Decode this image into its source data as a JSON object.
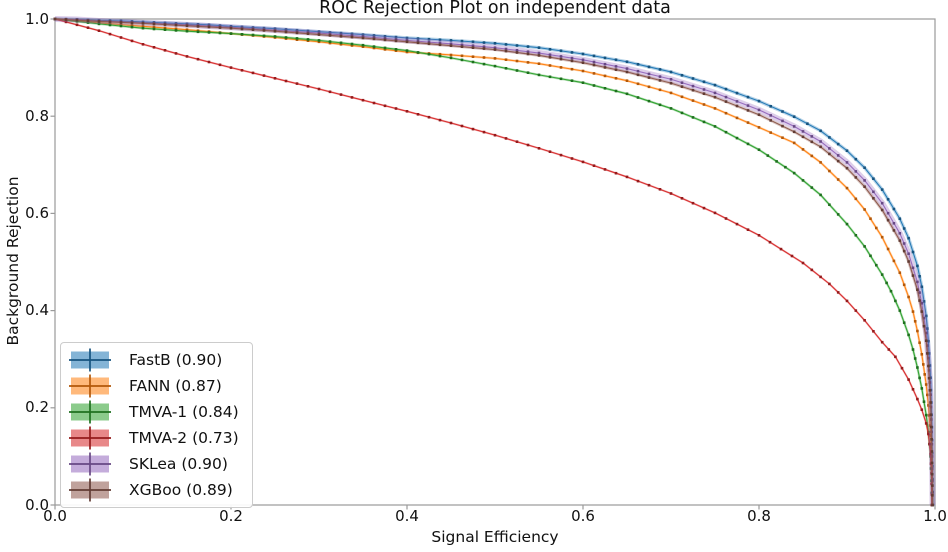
{
  "title": "ROC Rejection Plot on independent data",
  "axes": {
    "xlabel": "Signal Efficiency",
    "ylabel": "Background Rejection",
    "x_ticks": [
      "0.0",
      "0.2",
      "0.4",
      "0.6",
      "0.8",
      "1.0"
    ],
    "y_ticks": [
      "0.0",
      "0.2",
      "0.4",
      "0.6",
      "0.8",
      "1.0"
    ],
    "xlim": [
      0.0,
      1.0
    ],
    "ylim": [
      0.0,
      1.0
    ],
    "spine_color": "#9a9a9a",
    "grid": false
  },
  "legend": {
    "position": "lower left",
    "marker_style": "errorbar-patch"
  },
  "chart_data": {
    "type": "line",
    "title": "ROC Rejection Plot on independent data",
    "xlabel": "Signal Efficiency",
    "ylabel": "Background Rejection",
    "xlim": [
      0.0,
      1.0
    ],
    "ylim": [
      0.0,
      1.0
    ],
    "grid": false,
    "legend_position": "lower left",
    "series": [
      {
        "name": "FastB (0.90)",
        "auc": 0.9,
        "color": "#1f77b4",
        "marker_color": "#16537e",
        "band_width": 3.4,
        "points": [
          [
            0,
            1.0
          ],
          [
            0.025,
            0.999
          ],
          [
            0.05,
            0.997
          ],
          [
            0.075,
            0.996
          ],
          [
            0.1,
            0.994
          ],
          [
            0.125,
            0.992
          ],
          [
            0.15,
            0.99
          ],
          [
            0.175,
            0.988
          ],
          [
            0.2,
            0.985
          ],
          [
            0.25,
            0.98
          ],
          [
            0.3,
            0.974
          ],
          [
            0.35,
            0.968
          ],
          [
            0.4,
            0.961
          ],
          [
            0.45,
            0.956
          ],
          [
            0.5,
            0.95
          ],
          [
            0.55,
            0.941
          ],
          [
            0.6,
            0.928
          ],
          [
            0.65,
            0.912
          ],
          [
            0.7,
            0.891
          ],
          [
            0.75,
            0.864
          ],
          [
            0.8,
            0.831
          ],
          [
            0.84,
            0.799
          ],
          [
            0.87,
            0.77
          ],
          [
            0.9,
            0.729
          ],
          [
            0.92,
            0.694
          ],
          [
            0.94,
            0.649
          ],
          [
            0.96,
            0.589
          ],
          [
            0.97,
            0.549
          ],
          [
            0.98,
            0.492
          ],
          [
            0.985,
            0.449
          ],
          [
            0.99,
            0.389
          ],
          [
            0.9925,
            0.337
          ],
          [
            0.995,
            0.262
          ],
          [
            0.9965,
            0.16
          ],
          [
            0.997,
            0.08
          ],
          [
            0.9975,
            0.0
          ]
        ]
      },
      {
        "name": "FANN (0.87)",
        "auc": 0.87,
        "color": "#ff7f0e",
        "marker_color": "#b35809",
        "band_width": 2.4,
        "points": [
          [
            0,
            1.0
          ],
          [
            0.025,
            0.996
          ],
          [
            0.05,
            0.992
          ],
          [
            0.1,
            0.985
          ],
          [
            0.15,
            0.978
          ],
          [
            0.2,
            0.97
          ],
          [
            0.25,
            0.962
          ],
          [
            0.3,
            0.953
          ],
          [
            0.35,
            0.943
          ],
          [
            0.4,
            0.932
          ],
          [
            0.45,
            0.926
          ],
          [
            0.5,
            0.919
          ],
          [
            0.55,
            0.908
          ],
          [
            0.6,
            0.893
          ],
          [
            0.65,
            0.873
          ],
          [
            0.7,
            0.848
          ],
          [
            0.75,
            0.816
          ],
          [
            0.8,
            0.777
          ],
          [
            0.84,
            0.745
          ],
          [
            0.87,
            0.705
          ],
          [
            0.9,
            0.652
          ],
          [
            0.92,
            0.608
          ],
          [
            0.94,
            0.551
          ],
          [
            0.96,
            0.478
          ],
          [
            0.97,
            0.428
          ],
          [
            0.975,
            0.398
          ],
          [
            0.98,
            0.358
          ],
          [
            0.985,
            0.31
          ],
          [
            0.99,
            0.248
          ],
          [
            0.9925,
            0.205
          ],
          [
            0.995,
            0.143
          ],
          [
            0.9965,
            0.072
          ],
          [
            0.997,
            0.0
          ]
        ]
      },
      {
        "name": "TMVA-1 (0.84)",
        "auc": 0.84,
        "color": "#2ca02c",
        "marker_color": "#1e701e",
        "band_width": 2.4,
        "points": [
          [
            0,
            1.0
          ],
          [
            0.025,
            0.995
          ],
          [
            0.05,
            0.99
          ],
          [
            0.1,
            0.981
          ],
          [
            0.15,
            0.975
          ],
          [
            0.2,
            0.97
          ],
          [
            0.25,
            0.964
          ],
          [
            0.3,
            0.956
          ],
          [
            0.35,
            0.946
          ],
          [
            0.4,
            0.935
          ],
          [
            0.45,
            0.92
          ],
          [
            0.5,
            0.903
          ],
          [
            0.55,
            0.885
          ],
          [
            0.6,
            0.869
          ],
          [
            0.65,
            0.846
          ],
          [
            0.7,
            0.816
          ],
          [
            0.75,
            0.779
          ],
          [
            0.8,
            0.731
          ],
          [
            0.84,
            0.683
          ],
          [
            0.87,
            0.638
          ],
          [
            0.9,
            0.578
          ],
          [
            0.92,
            0.532
          ],
          [
            0.94,
            0.474
          ],
          [
            0.95,
            0.44
          ],
          [
            0.96,
            0.4
          ],
          [
            0.97,
            0.35
          ],
          [
            0.975,
            0.32
          ],
          [
            0.98,
            0.283
          ],
          [
            0.985,
            0.24
          ],
          [
            0.99,
            0.185
          ],
          [
            0.9925,
            0.15
          ],
          [
            0.995,
            0.1
          ],
          [
            0.996,
            0.05
          ],
          [
            0.9965,
            0.0
          ]
        ]
      },
      {
        "name": "TMVA-2 (0.73)",
        "auc": 0.73,
        "color": "#d62728",
        "marker_color": "#961b1c",
        "band_width": 2.0,
        "points": [
          [
            0,
            1.0
          ],
          [
            0.025,
            0.988
          ],
          [
            0.05,
            0.976
          ],
          [
            0.075,
            0.962
          ],
          [
            0.1,
            0.948
          ],
          [
            0.15,
            0.923
          ],
          [
            0.2,
            0.9
          ],
          [
            0.25,
            0.878
          ],
          [
            0.3,
            0.856
          ],
          [
            0.35,
            0.833
          ],
          [
            0.4,
            0.81
          ],
          [
            0.45,
            0.786
          ],
          [
            0.5,
            0.761
          ],
          [
            0.55,
            0.734
          ],
          [
            0.6,
            0.706
          ],
          [
            0.65,
            0.675
          ],
          [
            0.7,
            0.641
          ],
          [
            0.75,
            0.601
          ],
          [
            0.8,
            0.555
          ],
          [
            0.85,
            0.498
          ],
          [
            0.88,
            0.455
          ],
          [
            0.9,
            0.42
          ],
          [
            0.92,
            0.38
          ],
          [
            0.94,
            0.335
          ],
          [
            0.955,
            0.305
          ],
          [
            0.97,
            0.258
          ],
          [
            0.98,
            0.218
          ],
          [
            0.985,
            0.196
          ],
          [
            0.99,
            0.168
          ],
          [
            0.9925,
            0.146
          ],
          [
            0.995,
            0.105
          ],
          [
            0.996,
            0.065
          ],
          [
            0.9965,
            0.0
          ]
        ]
      },
      {
        "name": "SKLea (0.90)",
        "auc": 0.9,
        "color": "#9467bd",
        "marker_color": "#674884",
        "band_width": 6.0,
        "points": [
          [
            0,
            1.0
          ],
          [
            0.025,
            0.999
          ],
          [
            0.05,
            0.996
          ],
          [
            0.1,
            0.992
          ],
          [
            0.15,
            0.988
          ],
          [
            0.2,
            0.983
          ],
          [
            0.25,
            0.977
          ],
          [
            0.3,
            0.971
          ],
          [
            0.35,
            0.964
          ],
          [
            0.4,
            0.956
          ],
          [
            0.45,
            0.949
          ],
          [
            0.5,
            0.941
          ],
          [
            0.55,
            0.93
          ],
          [
            0.6,
            0.916
          ],
          [
            0.65,
            0.898
          ],
          [
            0.7,
            0.876
          ],
          [
            0.75,
            0.848
          ],
          [
            0.8,
            0.813
          ],
          [
            0.84,
            0.779
          ],
          [
            0.87,
            0.748
          ],
          [
            0.9,
            0.705
          ],
          [
            0.92,
            0.668
          ],
          [
            0.94,
            0.621
          ],
          [
            0.96,
            0.559
          ],
          [
            0.97,
            0.517
          ],
          [
            0.98,
            0.459
          ],
          [
            0.985,
            0.415
          ],
          [
            0.99,
            0.354
          ],
          [
            0.9925,
            0.302
          ],
          [
            0.995,
            0.227
          ],
          [
            0.9965,
            0.125
          ],
          [
            0.997,
            0.05
          ],
          [
            0.9972,
            0.0
          ]
        ]
      },
      {
        "name": "XGBoo (0.89)",
        "auc": 0.89,
        "color": "#8c564b",
        "marker_color": "#623c34",
        "band_width": 3.0,
        "points": [
          [
            0,
            1.0
          ],
          [
            0.05,
            0.995
          ],
          [
            0.1,
            0.991
          ],
          [
            0.15,
            0.986
          ],
          [
            0.2,
            0.981
          ],
          [
            0.25,
            0.975
          ],
          [
            0.3,
            0.968
          ],
          [
            0.35,
            0.961
          ],
          [
            0.4,
            0.953
          ],
          [
            0.45,
            0.945
          ],
          [
            0.5,
            0.937
          ],
          [
            0.55,
            0.925
          ],
          [
            0.6,
            0.91
          ],
          [
            0.65,
            0.891
          ],
          [
            0.7,
            0.868
          ],
          [
            0.75,
            0.839
          ],
          [
            0.8,
            0.803
          ],
          [
            0.84,
            0.768
          ],
          [
            0.87,
            0.737
          ],
          [
            0.9,
            0.693
          ],
          [
            0.92,
            0.655
          ],
          [
            0.94,
            0.607
          ],
          [
            0.96,
            0.544
          ],
          [
            0.97,
            0.501
          ],
          [
            0.98,
            0.443
          ],
          [
            0.985,
            0.398
          ],
          [
            0.99,
            0.338
          ],
          [
            0.9925,
            0.286
          ],
          [
            0.995,
            0.211
          ],
          [
            0.9965,
            0.11
          ],
          [
            0.997,
            0.04
          ],
          [
            0.9972,
            0.0
          ]
        ]
      }
    ]
  }
}
